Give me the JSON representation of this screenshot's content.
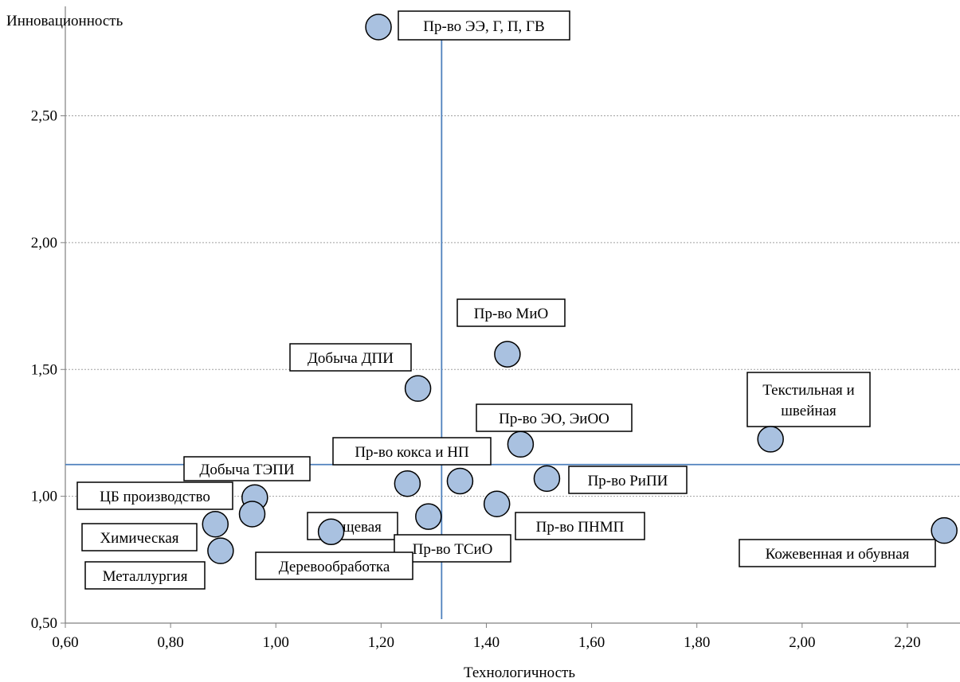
{
  "chart_data": {
    "type": "scatter",
    "title": "",
    "xlabel": "Технологичность",
    "ylabel": "Инновационность",
    "xlim": [
      0.6,
      2.3
    ],
    "ylim": [
      0.5,
      2.9
    ],
    "x_ticks": [
      "0,60",
      "0,80",
      "1,00",
      "1,20",
      "1,40",
      "1,60",
      "1,80",
      "2,00",
      "2,20"
    ],
    "y_ticks": [
      "0,50",
      "1,00",
      "1,50",
      "2,00",
      "2,50"
    ],
    "grid": "horizontal",
    "reference_lines": {
      "x": 1.315,
      "y": 1.125
    },
    "colors": {
      "marker_fill": "#a9c1e0",
      "marker_stroke": "#000000",
      "reference_line": "#4f81bd",
      "grid": "#a0a0a0"
    },
    "points": [
      {
        "label": "Пр-во ЭЭ, Г, П, ГВ",
        "x": 1.195,
        "y": 2.85
      },
      {
        "label": "Пр-во МиО",
        "x": 1.44,
        "y": 1.56
      },
      {
        "label": "Добыча ДПИ",
        "x": 1.27,
        "y": 1.425
      },
      {
        "label": "Текстильная и швейная",
        "x": 1.94,
        "y": 1.225
      },
      {
        "label": "Пр-во ЭО, ЭиОО",
        "x": 1.465,
        "y": 1.205
      },
      {
        "label": "Пр-во кокса и НП",
        "x": 1.25,
        "y": 1.05
      },
      {
        "label": "Добыча ТЭПИ",
        "x": 1.35,
        "y": 1.06
      },
      {
        "label": "Пр-во РиПИ",
        "x": 1.515,
        "y": 1.07
      },
      {
        "label": "ЦБ производство",
        "x": 0.96,
        "y": 0.995
      },
      {
        "label": "Пищевая",
        "x": 0.955,
        "y": 0.93
      },
      {
        "label": "Пр-во ПНМП",
        "x": 1.42,
        "y": 0.97
      },
      {
        "label": "Пр-во ТСиО",
        "x": 1.29,
        "y": 0.92
      },
      {
        "label": "Химическая",
        "x": 0.885,
        "y": 0.89
      },
      {
        "label": "Деревообработка",
        "x": 1.105,
        "y": 0.86
      },
      {
        "label": "Металлургия",
        "x": 0.895,
        "y": 0.785
      },
      {
        "label": "Кожевенная и обувная",
        "x": 2.27,
        "y": 0.865
      }
    ]
  }
}
